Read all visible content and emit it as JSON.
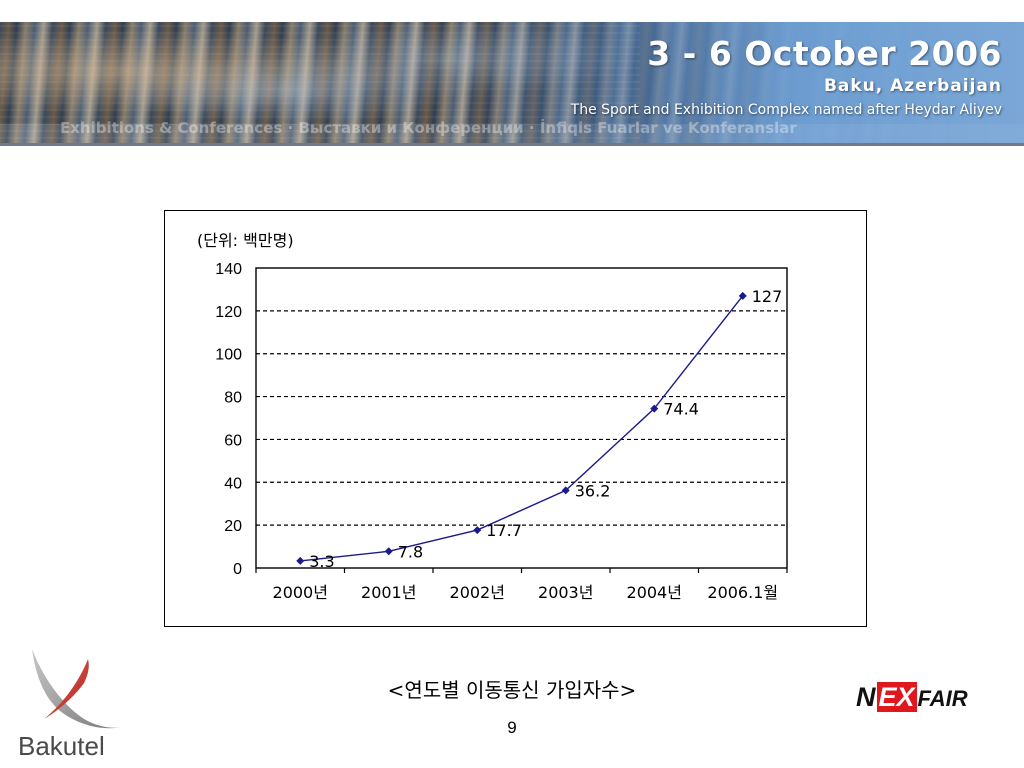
{
  "banner": {
    "date": "3 - 6 October 2006",
    "city": "Baku, Azerbaijan",
    "venue": "The Sport and Exhibition Complex named after Heydar Aliyev",
    "watermark": "Exhibitions & Conferences · Выставки и Конференции · İnfiqis Fuarlar ve Konferanslar"
  },
  "chart_data": {
    "type": "line",
    "unit_label": "(단위: 백만명)",
    "categories": [
      "2000년",
      "2001년",
      "2002년",
      "2003년",
      "2004년",
      "2006.1월"
    ],
    "series": [
      {
        "values": [
          3.3,
          7.8,
          17.7,
          36.2,
          74.4,
          127
        ]
      }
    ],
    "data_labels": [
      "3.3",
      "7.8",
      "17.7",
      "36.2",
      "74.4",
      "127"
    ],
    "ylim": [
      0,
      140
    ],
    "yticks": [
      0,
      20,
      40,
      60,
      80,
      100,
      120,
      140
    ],
    "grid": "dashed-horizontal",
    "line_color": "#1a1a8c",
    "marker": "diamond"
  },
  "caption": "<연도별 이동통신 가입자수>",
  "page_number": "9",
  "logos": {
    "left": "Bakutel",
    "right_n": "N",
    "right_ex": "EX",
    "right_fair": "FAIR"
  }
}
